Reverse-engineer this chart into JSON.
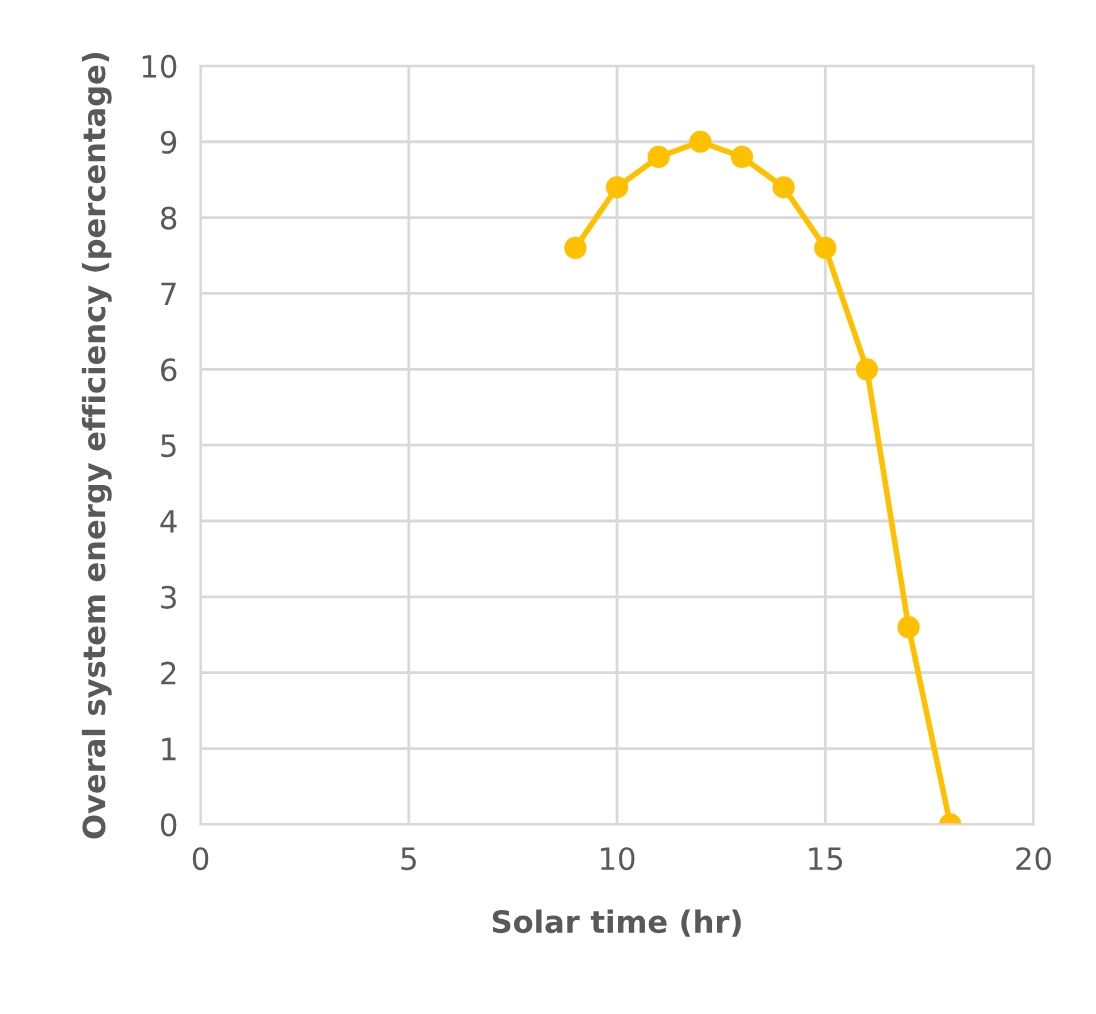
{
  "chart_data": {
    "type": "line",
    "xlabel": "Solar time (hr)",
    "ylabel": "Overal system energy efficiency (percentage)",
    "x": [
      9,
      10,
      11,
      12,
      13,
      14,
      15,
      16,
      17,
      18
    ],
    "series": [
      {
        "color": "#ffc000",
        "values": [
          7.6,
          8.4,
          8.8,
          9.0,
          8.8,
          8.4,
          7.6,
          6.0,
          2.6,
          0.0
        ]
      }
    ],
    "xlim": [
      0,
      20
    ],
    "xticks": [
      0,
      5,
      10,
      15,
      20
    ],
    "ylim": [
      0,
      10
    ],
    "yticks": [
      0,
      1,
      2,
      3,
      4,
      5,
      6,
      7,
      8,
      9,
      10
    ],
    "grid": true,
    "marker": "circle",
    "line_style": "solid",
    "legend": false
  }
}
